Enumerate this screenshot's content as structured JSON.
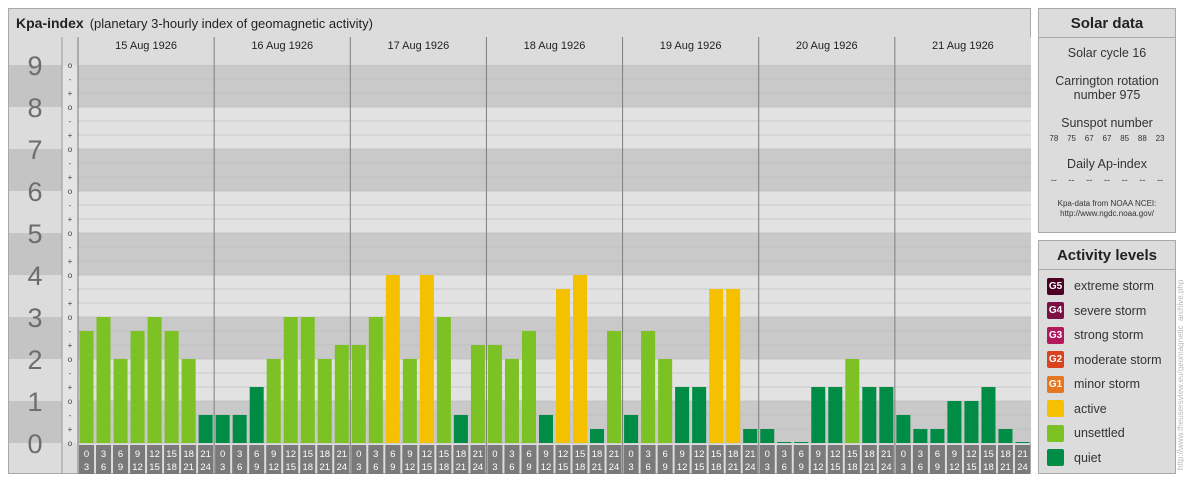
{
  "header": {
    "title": "Kpa-index",
    "subtitle": "(planetary 3-hourly index of geomagnetic activity)"
  },
  "solar": {
    "title": "Solar data",
    "cycle": "Solar cycle 16",
    "carrington_line1": "Carrington rotation",
    "carrington_line2": "number 975",
    "sunspot_label": "Sunspot number",
    "sunspots": [
      "78",
      "75",
      "67",
      "67",
      "85",
      "88",
      "23"
    ],
    "ap_label": "Daily Ap-index",
    "ap_values": [
      "--",
      "--",
      "--",
      "--",
      "--",
      "--",
      "--"
    ],
    "credit_line1": "Kpa-data from NOAA NCEI:",
    "credit_line2": "http://www.ngdc.noaa.gov/"
  },
  "levels": {
    "title": "Activity levels",
    "items": [
      {
        "badge": "G5",
        "label": "extreme storm",
        "color": "#4d0026"
      },
      {
        "badge": "G4",
        "label": "severe storm",
        "color": "#7a1044"
      },
      {
        "badge": "G3",
        "label": "strong storm",
        "color": "#b2185c"
      },
      {
        "badge": "G2",
        "label": "moderate storm",
        "color": "#d9411f"
      },
      {
        "badge": "G1",
        "label": "minor storm",
        "color": "#e6761f"
      },
      {
        "badge": "",
        "label": "active",
        "color": "#f5c000"
      },
      {
        "badge": "",
        "label": "unsettled",
        "color": "#7cc225"
      },
      {
        "badge": "",
        "label": "quiet",
        "color": "#008c45"
      }
    ]
  },
  "watermark": "http://www.theusersview.eu/geomagnetic_archive.php",
  "chart_data": {
    "type": "bar",
    "ylim": [
      0,
      9
    ],
    "y_ticks": [
      "0",
      "1",
      "2",
      "3",
      "4",
      "5",
      "6",
      "7",
      "8",
      "9"
    ],
    "sub_ticks": [
      "-",
      "o",
      "+"
    ],
    "days": [
      "15 Aug 1926",
      "16 Aug 1926",
      "17 Aug 1926",
      "18 Aug 1926",
      "19 Aug 1926",
      "20 Aug 1926",
      "21 Aug 1926"
    ],
    "interval_start": [
      "0",
      "3",
      "6",
      "9",
      "12",
      "15",
      "18",
      "21"
    ],
    "interval_end": [
      "3",
      "6",
      "9",
      "12",
      "15",
      "18",
      "21",
      "24"
    ],
    "colors": {
      "quiet": "#008c45",
      "unsettled": "#7cc225",
      "active": "#f5c000"
    },
    "values": [
      2.667,
      3.0,
      2.0,
      2.667,
      3.0,
      2.667,
      2.0,
      0.667,
      0.667,
      0.667,
      1.333,
      2.0,
      3.0,
      3.0,
      2.0,
      2.333,
      2.333,
      3.0,
      4.0,
      2.0,
      4.0,
      3.0,
      0.667,
      2.333,
      2.333,
      2.0,
      2.667,
      0.667,
      3.667,
      4.0,
      0.333,
      2.667,
      0.667,
      2.667,
      2.0,
      1.333,
      1.333,
      3.667,
      3.667,
      0.333,
      0.333,
      0.0,
      0.0,
      1.333,
      1.333,
      2.0,
      1.333,
      1.333,
      0.667,
      0.333,
      0.333,
      1.0,
      1.0,
      1.333,
      0.333,
      0.0
    ]
  }
}
